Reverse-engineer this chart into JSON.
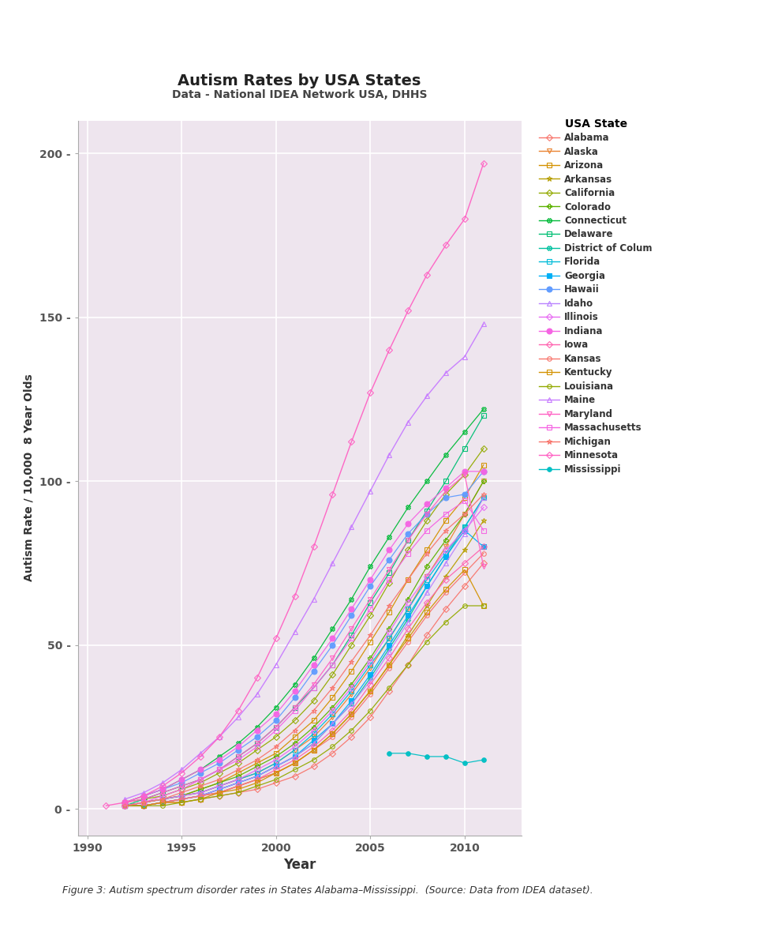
{
  "title": "Autism Rates by USA States",
  "subtitle": "Data - National IDEA Network USA, DHHS",
  "xlabel": "Year",
  "ylabel": "Autism Rate / 10,000  8 Year Olds",
  "figure_caption": "Figure 3: Autism spectrum disorder rates in States Alabama–Mississippi.  (Source: Data from IDEA dataset).",
  "legend_title": "USA State",
  "background_color": "#EEE5EE",
  "xlim": [
    1989.5,
    2013
  ],
  "ylim": [
    -8,
    210
  ],
  "xticks": [
    1990,
    1995,
    2000,
    2005,
    2010
  ],
  "yticks": [
    0,
    50,
    100,
    150,
    200
  ],
  "states": [
    "Alabama",
    "Alaska",
    "Arizona",
    "Arkansas",
    "California",
    "Colorado",
    "Connecticut",
    "Delaware",
    "District of Colum",
    "Florida",
    "Georgia",
    "Hawaii",
    "Idaho",
    "Illinois",
    "Indiana",
    "Iowa",
    "Kansas",
    "Kentucky",
    "Louisiana",
    "Maine",
    "Maryland",
    "Massachusetts",
    "Michigan",
    "Minnesota",
    "Mississippi"
  ],
  "state_styles": {
    "Alabama": {
      "color": "#F8766D",
      "marker": "D",
      "ms": 4,
      "lw": 0.9,
      "mfc": "none"
    },
    "Alaska": {
      "color": "#EA8331",
      "marker": "v",
      "ms": 4,
      "lw": 0.9,
      "mfc": "none"
    },
    "Arizona": {
      "color": "#D39200",
      "marker": "s",
      "ms": 4,
      "lw": 0.9,
      "mfc": "none"
    },
    "Arkansas": {
      "color": "#B79F00",
      "marker": "*",
      "ms": 5,
      "lw": 0.9,
      "mfc": "none"
    },
    "California": {
      "color": "#93AA00",
      "marker": "D",
      "ms": 4,
      "lw": 0.9,
      "mfc": "none"
    },
    "Colorado": {
      "color": "#5EB300",
      "marker": "P",
      "ms": 4,
      "lw": 0.9,
      "mfc": "none"
    },
    "Connecticut": {
      "color": "#00BA38",
      "marker": "X",
      "ms": 4,
      "lw": 0.9,
      "mfc": "none"
    },
    "Delaware": {
      "color": "#00BF74",
      "marker": "s",
      "ms": 4,
      "lw": 0.9,
      "mfc": "none"
    },
    "District of Colum": {
      "color": "#00C19F",
      "marker": "X",
      "ms": 4,
      "lw": 0.9,
      "mfc": "none"
    },
    "Florida": {
      "color": "#00BCD8",
      "marker": "s",
      "ms": 4,
      "lw": 0.9,
      "mfc": "none"
    },
    "Georgia": {
      "color": "#00B0F6",
      "marker": "s",
      "ms": 5,
      "lw": 0.9,
      "mfc": "#00B0F6"
    },
    "Hawaii": {
      "color": "#619CFF",
      "marker": "o",
      "ms": 5,
      "lw": 0.9,
      "mfc": "#619CFF"
    },
    "Idaho": {
      "color": "#B983FF",
      "marker": "^",
      "ms": 4,
      "lw": 0.9,
      "mfc": "none"
    },
    "Illinois": {
      "color": "#E76BF3",
      "marker": "D",
      "ms": 4,
      "lw": 0.9,
      "mfc": "none"
    },
    "Indiana": {
      "color": "#F564E3",
      "marker": "o",
      "ms": 5,
      "lw": 0.9,
      "mfc": "#F564E3"
    },
    "Iowa": {
      "color": "#FF64B0",
      "marker": "D",
      "ms": 4,
      "lw": 0.9,
      "mfc": "none"
    },
    "Kansas": {
      "color": "#F8766D",
      "marker": "o",
      "ms": 4,
      "lw": 0.9,
      "mfc": "none"
    },
    "Kentucky": {
      "color": "#D39200",
      "marker": "s",
      "ms": 4,
      "lw": 0.9,
      "mfc": "none"
    },
    "Louisiana": {
      "color": "#93AA00",
      "marker": "o",
      "ms": 4,
      "lw": 0.9,
      "mfc": "none"
    },
    "Maine": {
      "color": "#C77CFF",
      "marker": "^",
      "ms": 5,
      "lw": 1.0,
      "mfc": "none"
    },
    "Maryland": {
      "color": "#FF61C3",
      "marker": "v",
      "ms": 4,
      "lw": 0.9,
      "mfc": "none"
    },
    "Massachusetts": {
      "color": "#F564E3",
      "marker": "s",
      "ms": 4,
      "lw": 0.9,
      "mfc": "none"
    },
    "Michigan": {
      "color": "#F8766D",
      "marker": "*",
      "ms": 5,
      "lw": 0.9,
      "mfc": "none"
    },
    "Minnesota": {
      "color": "#FF61C3",
      "marker": "D",
      "ms": 4,
      "lw": 1.0,
      "mfc": "none"
    },
    "Mississippi": {
      "color": "#00BFC4",
      "marker": "o",
      "ms": 4,
      "lw": 0.9,
      "mfc": "#00BFC4"
    }
  },
  "series": {
    "Alabama": {
      "years": [
        1992,
        1993,
        1994,
        1995,
        1996,
        1997,
        1998,
        1999,
        2000,
        2001,
        2002,
        2003,
        2004,
        2005,
        2006,
        2007,
        2008,
        2009,
        2010,
        2011
      ],
      "values": [
        1,
        1,
        2,
        2,
        3,
        4,
        5,
        6,
        8,
        10,
        13,
        17,
        22,
        28,
        36,
        44,
        53,
        61,
        68,
        75
      ]
    },
    "Alaska": {
      "years": [
        1992,
        1993,
        1994,
        1995,
        1996,
        1997,
        1998,
        1999,
        2000,
        2001,
        2002,
        2003,
        2004,
        2005,
        2006,
        2007,
        2008,
        2009,
        2010,
        2011
      ],
      "values": [
        1,
        2,
        3,
        4,
        5,
        7,
        9,
        11,
        14,
        18,
        22,
        28,
        35,
        43,
        52,
        61,
        71,
        80,
        90,
        100
      ]
    },
    "Arizona": {
      "years": [
        1992,
        1993,
        1994,
        1995,
        1996,
        1997,
        1998,
        1999,
        2000,
        2001,
        2002,
        2003,
        2004,
        2005,
        2006,
        2007,
        2008,
        2009,
        2010,
        2011
      ],
      "values": [
        1,
        2,
        3,
        4,
        6,
        8,
        11,
        14,
        17,
        22,
        27,
        34,
        42,
        51,
        60,
        70,
        79,
        88,
        95,
        105
      ]
    },
    "Arkansas": {
      "years": [
        1992,
        1993,
        1994,
        1995,
        1996,
        1997,
        1998,
        1999,
        2000,
        2001,
        2002,
        2003,
        2004,
        2005,
        2006,
        2007,
        2008,
        2009,
        2010,
        2011
      ],
      "values": [
        1,
        1,
        2,
        3,
        4,
        5,
        7,
        9,
        11,
        14,
        18,
        23,
        29,
        36,
        44,
        53,
        62,
        71,
        79,
        88
      ]
    },
    "California": {
      "years": [
        1992,
        1993,
        1994,
        1995,
        1996,
        1997,
        1998,
        1999,
        2000,
        2001,
        2002,
        2003,
        2004,
        2005,
        2006,
        2007,
        2008,
        2009,
        2010,
        2011
      ],
      "values": [
        2,
        3,
        4,
        6,
        8,
        11,
        14,
        18,
        22,
        27,
        33,
        41,
        50,
        59,
        69,
        79,
        88,
        96,
        102,
        110
      ]
    },
    "Colorado": {
      "years": [
        1992,
        1993,
        1994,
        1995,
        1996,
        1997,
        1998,
        1999,
        2000,
        2001,
        2002,
        2003,
        2004,
        2005,
        2006,
        2007,
        2008,
        2009,
        2010,
        2011
      ],
      "values": [
        1,
        2,
        3,
        4,
        6,
        8,
        10,
        13,
        16,
        20,
        25,
        31,
        38,
        46,
        55,
        64,
        74,
        82,
        90,
        100
      ]
    },
    "Connecticut": {
      "years": [
        1992,
        1993,
        1994,
        1995,
        1996,
        1997,
        1998,
        1999,
        2000,
        2001,
        2002,
        2003,
        2004,
        2005,
        2006,
        2007,
        2008,
        2009,
        2010,
        2011
      ],
      "values": [
        2,
        4,
        6,
        9,
        12,
        16,
        20,
        25,
        31,
        38,
        46,
        55,
        64,
        74,
        83,
        92,
        100,
        108,
        115,
        122
      ]
    },
    "Delaware": {
      "years": [
        1992,
        1993,
        1994,
        1995,
        1996,
        1997,
        1998,
        1999,
        2000,
        2001,
        2002,
        2003,
        2004,
        2005,
        2006,
        2007,
        2008,
        2009,
        2010,
        2011
      ],
      "values": [
        1,
        3,
        5,
        7,
        9,
        12,
        16,
        20,
        25,
        31,
        37,
        44,
        53,
        63,
        72,
        82,
        91,
        100,
        110,
        120
      ]
    },
    "District of Colum": {
      "years": [
        1992,
        1993,
        1994,
        1995,
        1996,
        1997,
        1998,
        1999,
        2000,
        2001,
        2002,
        2003,
        2004,
        2005,
        2006,
        2007,
        2008,
        2009,
        2010,
        2011
      ],
      "values": [
        1,
        1,
        2,
        3,
        4,
        6,
        8,
        10,
        13,
        16,
        20,
        26,
        32,
        40,
        49,
        58,
        68,
        77,
        86,
        95
      ]
    },
    "Florida": {
      "years": [
        1992,
        1993,
        1994,
        1995,
        1996,
        1997,
        1998,
        1999,
        2000,
        2001,
        2002,
        2003,
        2004,
        2005,
        2006,
        2007,
        2008,
        2009,
        2010,
        2011
      ],
      "values": [
        1,
        2,
        3,
        4,
        5,
        7,
        9,
        11,
        14,
        18,
        23,
        29,
        36,
        44,
        52,
        61,
        70,
        78,
        86,
        95
      ]
    },
    "Georgia": {
      "years": [
        1992,
        1993,
        1994,
        1995,
        1996,
        1997,
        1998,
        1999,
        2000,
        2001,
        2002,
        2003,
        2004,
        2005,
        2006,
        2007,
        2008,
        2009,
        2010,
        2011
      ],
      "values": [
        1,
        1,
        2,
        3,
        4,
        6,
        8,
        10,
        13,
        16,
        21,
        26,
        33,
        41,
        50,
        59,
        68,
        77,
        85,
        80
      ]
    },
    "Hawaii": {
      "years": [
        1992,
        1993,
        1994,
        1995,
        1996,
        1997,
        1998,
        1999,
        2000,
        2001,
        2002,
        2003,
        2004,
        2005,
        2006,
        2007,
        2008,
        2009,
        2010,
        2011
      ],
      "values": [
        2,
        4,
        6,
        8,
        11,
        14,
        18,
        22,
        27,
        34,
        42,
        50,
        59,
        68,
        76,
        84,
        90,
        95,
        96,
        103
      ]
    },
    "Idaho": {
      "years": [
        1992,
        1993,
        1994,
        1995,
        1996,
        1997,
        1998,
        1999,
        2000,
        2001,
        2002,
        2003,
        2004,
        2005,
        2006,
        2007,
        2008,
        2009,
        2010,
        2011
      ],
      "values": [
        1,
        1,
        2,
        3,
        4,
        6,
        8,
        10,
        13,
        16,
        20,
        26,
        32,
        39,
        48,
        57,
        66,
        75,
        84,
        95
      ]
    },
    "Illinois": {
      "years": [
        1992,
        1993,
        1994,
        1995,
        1996,
        1997,
        1998,
        1999,
        2000,
        2001,
        2002,
        2003,
        2004,
        2005,
        2006,
        2007,
        2008,
        2009,
        2010,
        2011
      ],
      "values": [
        1,
        2,
        3,
        4,
        5,
        7,
        9,
        12,
        15,
        19,
        24,
        30,
        37,
        45,
        54,
        63,
        71,
        79,
        85,
        92
      ]
    },
    "Indiana": {
      "years": [
        1992,
        1993,
        1994,
        1995,
        1996,
        1997,
        1998,
        1999,
        2000,
        2001,
        2002,
        2003,
        2004,
        2005,
        2006,
        2007,
        2008,
        2009,
        2010,
        2011
      ],
      "values": [
        2,
        4,
        6,
        9,
        12,
        15,
        19,
        24,
        29,
        36,
        44,
        52,
        61,
        70,
        79,
        87,
        93,
        98,
        103,
        103
      ]
    },
    "Iowa": {
      "years": [
        1992,
        1993,
        1994,
        1995,
        1996,
        1997,
        1998,
        1999,
        2000,
        2001,
        2002,
        2003,
        2004,
        2005,
        2006,
        2007,
        2008,
        2009,
        2010,
        2011
      ],
      "values": [
        1,
        1,
        2,
        3,
        4,
        5,
        7,
        9,
        12,
        15,
        19,
        24,
        30,
        38,
        46,
        55,
        63,
        70,
        75,
        80
      ]
    },
    "Kansas": {
      "years": [
        1992,
        1993,
        1994,
        1995,
        1996,
        1997,
        1998,
        1999,
        2000,
        2001,
        2002,
        2003,
        2004,
        2005,
        2006,
        2007,
        2008,
        2009,
        2010,
        2011
      ],
      "values": [
        1,
        1,
        2,
        3,
        4,
        5,
        7,
        9,
        11,
        14,
        18,
        22,
        28,
        35,
        43,
        51,
        59,
        66,
        72,
        78
      ]
    },
    "Kentucky": {
      "years": [
        1992,
        1993,
        1994,
        1995,
        1996,
        1997,
        1998,
        1999,
        2000,
        2001,
        2002,
        2003,
        2004,
        2005,
        2006,
        2007,
        2008,
        2009,
        2010,
        2011
      ],
      "values": [
        1,
        1,
        2,
        2,
        3,
        5,
        6,
        8,
        11,
        14,
        18,
        23,
        29,
        36,
        44,
        52,
        60,
        67,
        73,
        62
      ]
    },
    "Louisiana": {
      "years": [
        1992,
        1993,
        1994,
        1995,
        1996,
        1997,
        1998,
        1999,
        2000,
        2001,
        2002,
        2003,
        2004,
        2005,
        2006,
        2007,
        2008,
        2009,
        2010,
        2011
      ],
      "values": [
        1,
        1,
        1,
        2,
        3,
        4,
        5,
        7,
        9,
        12,
        15,
        19,
        24,
        30,
        37,
        44,
        51,
        57,
        62,
        62
      ]
    },
    "Maine": {
      "years": [
        1992,
        1993,
        1994,
        1995,
        1996,
        1997,
        1998,
        1999,
        2000,
        2001,
        2002,
        2003,
        2004,
        2005,
        2006,
        2007,
        2008,
        2009,
        2010,
        2011
      ],
      "values": [
        3,
        5,
        8,
        12,
        17,
        22,
        28,
        35,
        44,
        54,
        64,
        75,
        86,
        97,
        108,
        118,
        126,
        133,
        138,
        148
      ]
    },
    "Maryland": {
      "years": [
        1992,
        1993,
        1994,
        1995,
        1996,
        1997,
        1998,
        1999,
        2000,
        2001,
        2002,
        2003,
        2004,
        2005,
        2006,
        2007,
        2008,
        2009,
        2010,
        2011
      ],
      "values": [
        2,
        3,
        5,
        7,
        9,
        12,
        16,
        20,
        25,
        31,
        38,
        46,
        55,
        64,
        73,
        82,
        90,
        97,
        102,
        74
      ]
    },
    "Massachusetts": {
      "years": [
        1992,
        1993,
        1994,
        1995,
        1996,
        1997,
        1998,
        1999,
        2000,
        2001,
        2002,
        2003,
        2004,
        2005,
        2006,
        2007,
        2008,
        2009,
        2010,
        2011
      ],
      "values": [
        1,
        2,
        4,
        6,
        9,
        12,
        15,
        19,
        24,
        30,
        37,
        44,
        52,
        61,
        70,
        78,
        85,
        90,
        94,
        85
      ]
    },
    "Michigan": {
      "years": [
        1992,
        1993,
        1994,
        1995,
        1996,
        1997,
        1998,
        1999,
        2000,
        2001,
        2002,
        2003,
        2004,
        2005,
        2006,
        2007,
        2008,
        2009,
        2010,
        2011
      ],
      "values": [
        1,
        2,
        3,
        5,
        7,
        9,
        12,
        15,
        19,
        24,
        30,
        37,
        45,
        53,
        62,
        70,
        78,
        85,
        90,
        96
      ]
    },
    "Minnesota": {
      "years": [
        1991,
        1992,
        1993,
        1994,
        1995,
        1996,
        1997,
        1998,
        1999,
        2000,
        2001,
        2002,
        2003,
        2004,
        2005,
        2006,
        2007,
        2008,
        2009,
        2010,
        2011
      ],
      "values": [
        1,
        2,
        4,
        7,
        11,
        16,
        22,
        30,
        40,
        52,
        65,
        80,
        96,
        112,
        127,
        140,
        152,
        163,
        172,
        180,
        197
      ]
    },
    "Mississippi": {
      "years": [
        2006,
        2007,
        2008,
        2009,
        2010,
        2011
      ],
      "values": [
        17,
        17,
        16,
        16,
        14,
        15
      ]
    }
  }
}
